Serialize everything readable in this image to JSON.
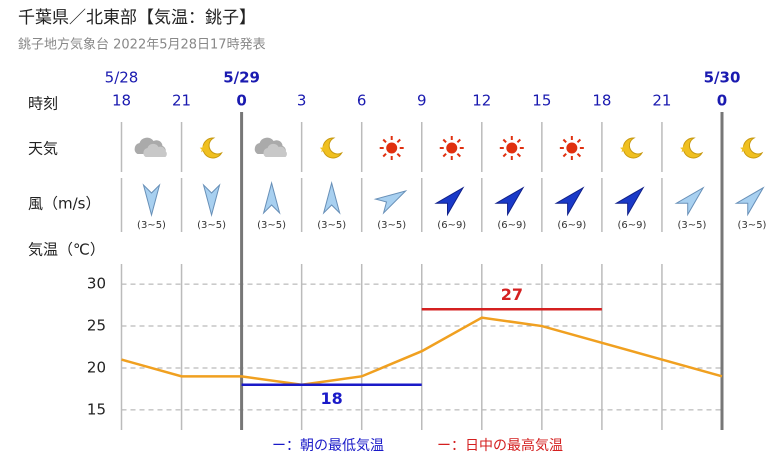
{
  "title": "千葉県／北東部【気温：銚子】",
  "subtitle": "銚子地方気象台 2022年5月28日17時発表",
  "chart_data": {
    "type": "line",
    "row_labels": {
      "time": "時刻",
      "weather": "天気",
      "wind": "風（m/s）",
      "temperature": "気温（℃）"
    },
    "dates": [
      "5/28",
      null,
      "5/29",
      null,
      null,
      null,
      null,
      null,
      null,
      null,
      "5/30"
    ],
    "categories": [
      "18",
      "21",
      "0",
      "3",
      "6",
      "9",
      "12",
      "15",
      "18",
      "21",
      "0"
    ],
    "wind_speed": [
      "(3~5)",
      "(3~5)",
      "(3~5)",
      "(3~5)",
      "(3~5)",
      "(6~9)",
      "(6~9)",
      "(6~9)",
      "(6~9)",
      "(3~5)",
      "(3~5)"
    ],
    "wind_direction": [
      180,
      180,
      0,
      0,
      60,
      45,
      45,
      45,
      45,
      45,
      45
    ],
    "values": [
      21,
      19,
      19,
      18,
      19,
      22,
      26,
      25,
      23,
      21,
      19
    ],
    "color": "#f0a020",
    "series": [
      {
        "name": "ー：朝の最低気温",
        "color": "#1a1ac8",
        "values": [
          null,
          null,
          18,
          18,
          18,
          18,
          null,
          null,
          null,
          null,
          null
        ]
      },
      {
        "name": "ー：日中の最高気温",
        "color": "#d42020",
        "values": [
          null,
          null,
          null,
          null,
          null,
          27,
          27,
          27,
          27,
          null,
          null
        ]
      }
    ],
    "ylim": [
      12.6,
      32.4
    ],
    "yticks": [
      15,
      20,
      25,
      30
    ],
    "grid": true
  }
}
